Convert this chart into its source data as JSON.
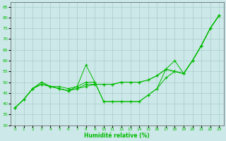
{
  "xlabel": "Humidité relative (%)",
  "xlim": [
    -0.5,
    23.5
  ],
  "ylim": [
    30,
    87
  ],
  "yticks": [
    30,
    35,
    40,
    45,
    50,
    55,
    60,
    65,
    70,
    75,
    80,
    85
  ],
  "xticks": [
    0,
    1,
    2,
    3,
    4,
    5,
    6,
    7,
    8,
    9,
    10,
    11,
    12,
    13,
    14,
    15,
    16,
    17,
    18,
    19,
    20,
    21,
    22,
    23
  ],
  "background_color": "#cce8e8",
  "grid_color": "#aacccc",
  "line_color": "#00bb00",
  "series": [
    [
      38,
      42,
      47,
      49,
      48,
      47,
      46,
      47,
      48,
      49,
      49,
      49,
      50,
      50,
      50,
      51,
      53,
      56,
      55,
      54,
      60,
      67,
      75,
      81
    ],
    [
      38,
      42,
      47,
      50,
      48,
      47,
      46,
      47,
      49,
      49,
      49,
      49,
      50,
      50,
      50,
      51,
      53,
      56,
      60,
      54,
      60,
      67,
      75,
      81
    ],
    [
      38,
      42,
      47,
      49,
      48,
      47,
      46,
      48,
      58,
      50,
      41,
      41,
      41,
      41,
      41,
      44,
      47,
      56,
      55,
      54,
      60,
      67,
      75,
      81
    ],
    [
      38,
      42,
      47,
      50,
      48,
      48,
      47,
      48,
      50,
      50,
      41,
      41,
      41,
      41,
      41,
      44,
      47,
      52,
      55,
      54,
      60,
      67,
      75,
      81
    ]
  ]
}
